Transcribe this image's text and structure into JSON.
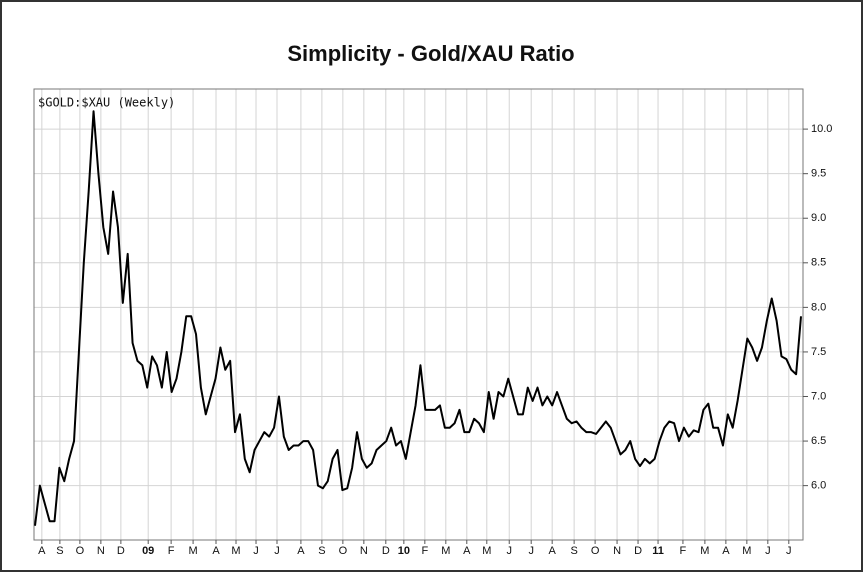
{
  "chart_data": {
    "type": "line",
    "title": "Simplicity  -  Gold/XAU Ratio",
    "chart_label": "$GOLD:$XAU (Weekly)",
    "grid": true,
    "series": [
      {
        "name": "$GOLD:$XAU",
        "color": "#000000",
        "values": [
          5.55,
          6.0,
          5.8,
          5.6,
          5.6,
          6.2,
          6.05,
          6.3,
          6.5,
          7.5,
          8.5,
          9.3,
          10.2,
          9.5,
          8.9,
          8.6,
          9.3,
          8.9,
          8.05,
          8.6,
          7.6,
          7.4,
          7.35,
          7.1,
          7.45,
          7.35,
          7.1,
          7.5,
          7.05,
          7.2,
          7.5,
          7.9,
          7.9,
          7.7,
          7.1,
          6.8,
          7.0,
          7.2,
          7.55,
          7.3,
          7.4,
          6.6,
          6.8,
          6.3,
          6.15,
          6.4,
          6.5,
          6.6,
          6.55,
          6.65,
          7.0,
          6.55,
          6.4,
          6.45,
          6.45,
          6.5,
          6.5,
          6.4,
          6.0,
          5.97,
          6.05,
          6.3,
          6.4,
          5.95,
          5.97,
          6.2,
          6.6,
          6.3,
          6.2,
          6.25,
          6.4,
          6.45,
          6.5,
          6.65,
          6.45,
          6.5,
          6.3,
          6.6,
          6.9,
          7.35,
          6.85,
          6.85,
          6.85,
          6.9,
          6.65,
          6.65,
          6.7,
          6.85,
          6.6,
          6.6,
          6.75,
          6.7,
          6.6,
          7.05,
          6.75,
          7.05,
          7.0,
          7.2,
          7.0,
          6.8,
          6.8,
          7.1,
          6.95,
          7.1,
          6.9,
          7.0,
          6.9,
          7.05,
          6.9,
          6.75,
          6.7,
          6.72,
          6.65,
          6.6,
          6.6,
          6.58,
          6.65,
          6.72,
          6.65,
          6.5,
          6.35,
          6.4,
          6.5,
          6.3,
          6.22,
          6.3,
          6.25,
          6.3,
          6.5,
          6.65,
          6.72,
          6.7,
          6.5,
          6.65,
          6.55,
          6.62,
          6.6,
          6.85,
          6.92,
          6.65,
          6.65,
          6.45,
          6.8,
          6.65,
          6.95,
          7.3,
          7.65,
          7.55,
          7.4,
          7.55,
          7.85,
          8.1,
          7.85,
          7.45,
          7.42,
          7.3,
          7.25,
          7.9
        ]
      }
    ],
    "xlim": [
      0,
      157
    ],
    "xticks": [
      {
        "value": 1.4,
        "label": "A"
      },
      {
        "value": 5.1,
        "label": "S"
      },
      {
        "value": 9.2,
        "label": "O"
      },
      {
        "value": 13.5,
        "label": "N"
      },
      {
        "value": 17.6,
        "label": "D"
      },
      {
        "value": 23.2,
        "label": "09"
      },
      {
        "value": 27.9,
        "label": "F"
      },
      {
        "value": 32.4,
        "label": "M"
      },
      {
        "value": 37.1,
        "label": "A"
      },
      {
        "value": 41.2,
        "label": "M"
      },
      {
        "value": 45.3,
        "label": "J"
      },
      {
        "value": 49.6,
        "label": "J"
      },
      {
        "value": 54.5,
        "label": "A"
      },
      {
        "value": 58.8,
        "label": "S"
      },
      {
        "value": 63.1,
        "label": "O"
      },
      {
        "value": 67.4,
        "label": "N"
      },
      {
        "value": 71.9,
        "label": "D"
      },
      {
        "value": 75.6,
        "label": "10"
      },
      {
        "value": 79.9,
        "label": "F"
      },
      {
        "value": 84.2,
        "label": "M"
      },
      {
        "value": 88.5,
        "label": "A"
      },
      {
        "value": 92.6,
        "label": "M"
      },
      {
        "value": 97.2,
        "label": "J"
      },
      {
        "value": 101.7,
        "label": "J"
      },
      {
        "value": 106.0,
        "label": "A"
      },
      {
        "value": 110.5,
        "label": "S"
      },
      {
        "value": 114.8,
        "label": "O"
      },
      {
        "value": 119.3,
        "label": "N"
      },
      {
        "value": 123.6,
        "label": "D"
      },
      {
        "value": 127.7,
        "label": "11"
      },
      {
        "value": 132.8,
        "label": "F"
      },
      {
        "value": 137.3,
        "label": "M"
      },
      {
        "value": 141.6,
        "label": "A"
      },
      {
        "value": 145.9,
        "label": "M"
      },
      {
        "value": 150.2,
        "label": "J"
      },
      {
        "value": 154.5,
        "label": "J"
      }
    ],
    "ylim": [
      5.39,
      10.45
    ],
    "yticks": [
      {
        "value": 6,
        "label": "6.0"
      },
      6.5,
      {
        "value": 7,
        "label": "7.0"
      },
      7.5,
      {
        "value": 8,
        "label": "8.0"
      },
      8.5,
      {
        "value": 9,
        "label": "9.0"
      },
      9.5,
      {
        "value": 10,
        "label": "10.0"
      }
    ]
  }
}
